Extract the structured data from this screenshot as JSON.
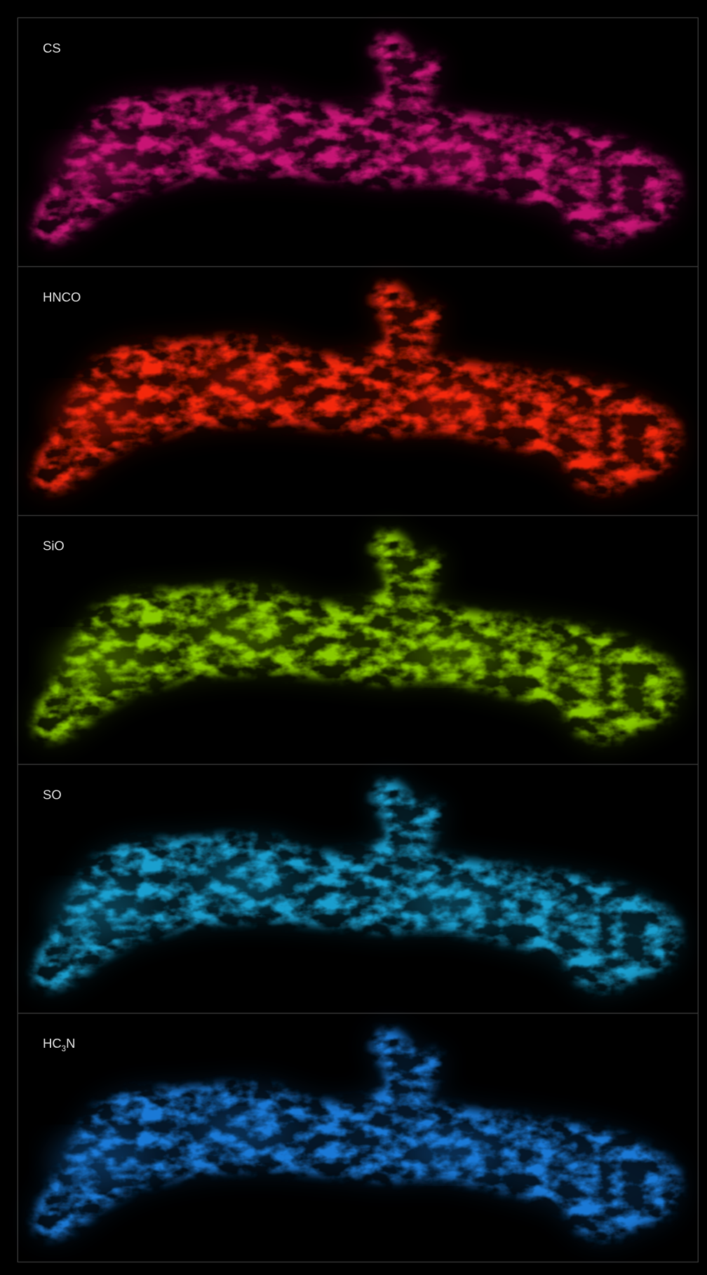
{
  "panels": [
    {
      "label": "CS",
      "color": "#d0187a"
    },
    {
      "label": "HNCO",
      "color": "#ff2a10"
    },
    {
      "label": "SiO",
      "color": "#8fd400"
    },
    {
      "label": "SO",
      "color": "#1aa6d8"
    },
    {
      "label": "HC",
      "label_sub": "3",
      "label_end": "N",
      "color": "#1a7fe0"
    }
  ]
}
